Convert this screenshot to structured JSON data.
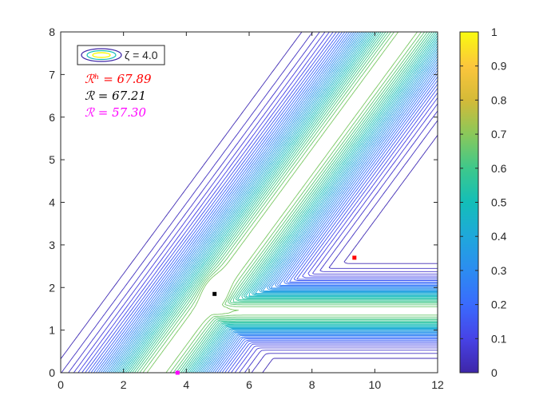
{
  "chart_data": {
    "type": "contour",
    "title": "",
    "xlabel": "",
    "ylabel": "",
    "xlim": [
      0,
      12
    ],
    "ylim": [
      0,
      8
    ],
    "xticks": [
      "0",
      "2",
      "4",
      "6",
      "8",
      "10",
      "12"
    ],
    "yticks": [
      "0",
      "1",
      "2",
      "3",
      "4",
      "5",
      "6",
      "7",
      "8"
    ],
    "colormap": "parula",
    "colorbar": {
      "limits": [
        0,
        1
      ],
      "ticks": [
        "0",
        "0.1",
        "0.2",
        "0.3",
        "0.4",
        "0.5",
        "0.6",
        "0.7",
        "0.8",
        "0.9",
        "1"
      ]
    },
    "contour_levels": 34,
    "legend": {
      "location": "top-left",
      "entry": "ζ = 4.0"
    },
    "annotations": [
      {
        "label": "ℛʰ = 67.89",
        "color": "#ff0000"
      },
      {
        "label": "ℛ = 67.21",
        "color": "#000000"
      },
      {
        "label": "ℛ = 57.30",
        "color": "#ff00ff"
      }
    ],
    "markers": [
      {
        "x": 9.35,
        "y": 2.7,
        "color": "#ff0000"
      },
      {
        "x": 4.9,
        "y": 1.85,
        "color": "#000000"
      },
      {
        "x": 3.72,
        "y": 0.0,
        "color": "#ff00ff"
      }
    ]
  }
}
